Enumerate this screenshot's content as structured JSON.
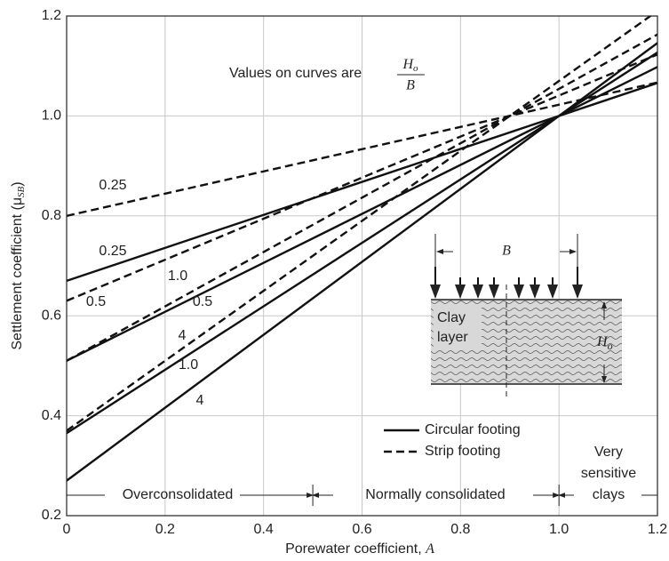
{
  "chart_data": {
    "type": "line",
    "x_label": {
      "text": "Porewater coefficient, ",
      "var": "A"
    },
    "y_label": {
      "text": "Settlement coefficient (μ",
      "sub": "SB",
      "end": ")"
    },
    "x": [
      0,
      1.2
    ],
    "series": [
      {
        "name": "0.25",
        "style": "solid",
        "color": "#111111",
        "values": [
          0.67,
          1.066
        ]
      },
      {
        "name": "0.5",
        "style": "solid",
        "color": "#111111",
        "values": [
          0.51,
          1.098
        ]
      },
      {
        "name": "1.0",
        "style": "solid",
        "color": "#111111",
        "values": [
          0.365,
          1.127
        ]
      },
      {
        "name": "4",
        "style": "solid",
        "color": "#111111",
        "values": [
          0.27,
          1.146
        ]
      },
      {
        "name": "0.25",
        "style": "dashed",
        "color": "#111111",
        "values": [
          0.8,
          1.067
        ]
      },
      {
        "name": "0.5",
        "style": "dashed",
        "color": "#111111",
        "values": [
          0.63,
          1.123
        ]
      },
      {
        "name": "1.0",
        "style": "dashed",
        "color": "#111111",
        "values": [
          0.51,
          1.163
        ]
      },
      {
        "name": "4",
        "style": "dashed",
        "color": "#111111",
        "values": [
          0.37,
          1.21
        ]
      }
    ],
    "legend": [
      {
        "label": "Circular footing",
        "style": "solid"
      },
      {
        "label": "Strip footing",
        "style": "dashed"
      }
    ],
    "xlim": [
      0,
      1.2
    ],
    "ylim": [
      0.2,
      1.2
    ],
    "xticks": [
      0,
      0.2,
      0.4,
      0.6,
      0.8,
      {
        "value": 1,
        "label": "1.0"
      },
      1.2
    ],
    "yticks": [
      0.2,
      0.4,
      0.6,
      0.8,
      {
        "value": 1,
        "label": "1.0"
      },
      1.2
    ],
    "grid": true,
    "note": {
      "text": "Values on curves are",
      "num": "H",
      "num_sub": "o",
      "den": "B"
    },
    "regions": {
      "over": "Overconsolidated",
      "normal": "Normally consolidated",
      "very": [
        "Very",
        "sensitive",
        "clays"
      ],
      "bounds": [
        0.5,
        1
      ]
    },
    "inset": {
      "width": "B",
      "clay": [
        "Clay",
        "layer"
      ],
      "height": "H",
      "height_sub": "o"
    }
  }
}
